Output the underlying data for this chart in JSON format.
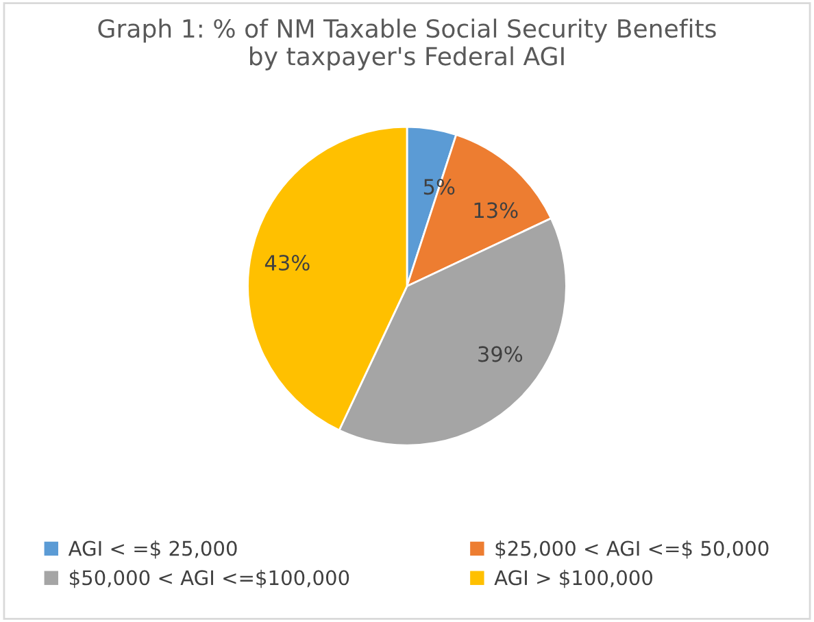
{
  "chart_data": {
    "type": "pie",
    "title": "Graph 1: % of NM Taxable Social Security Benefits\nby taxpayer's Federal AGI",
    "categories": [
      "AGI < =$ 25,000",
      "$25,000 < AGI <=$ 50,000",
      "$50,000 < AGI <=$100,000",
      "AGI > $100,000"
    ],
    "values": [
      5,
      13,
      39,
      43
    ],
    "colors": [
      "#5b9bd5",
      "#ed7d31",
      "#a5a5a5",
      "#ffc000"
    ],
    "value_labels": [
      "5%",
      "13%",
      "39%",
      "43%"
    ],
    "legend": "bottom"
  }
}
